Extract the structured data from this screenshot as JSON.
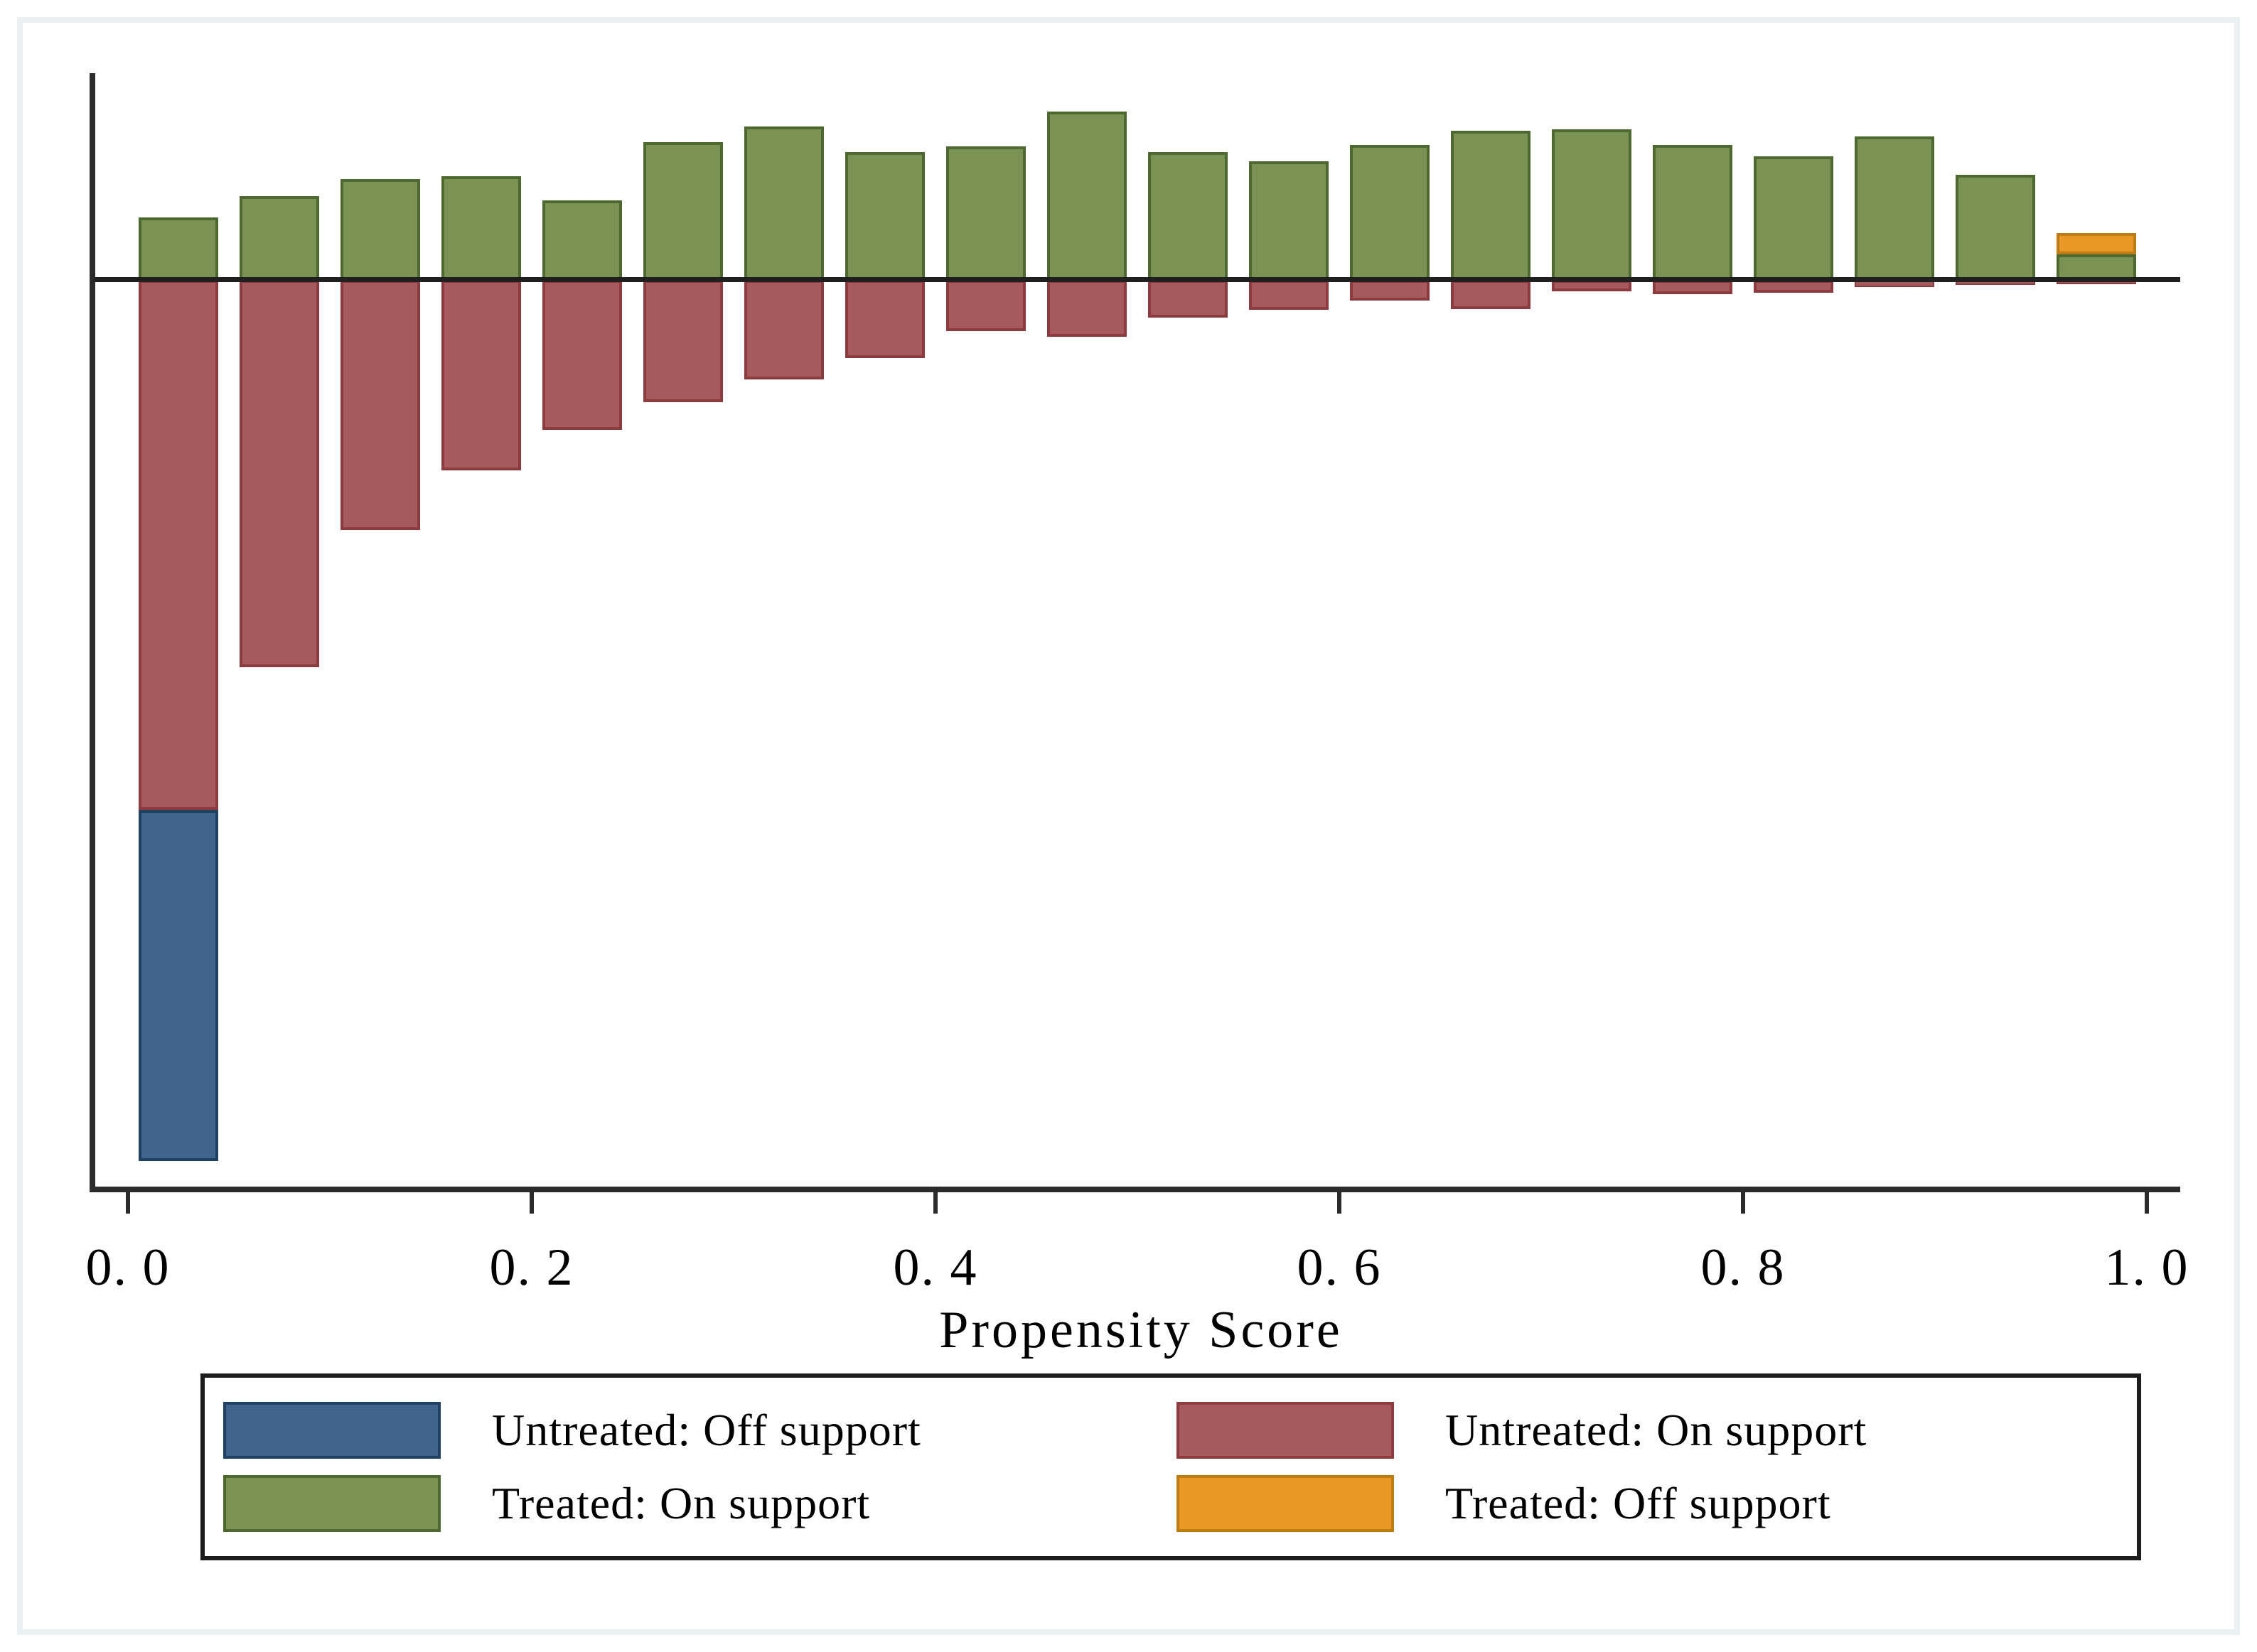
{
  "page": {
    "background": "#ffffff",
    "frame_border_color": "#ebf1f3"
  },
  "axis": {
    "line_color": "#2b2b2b",
    "zero_line_color": "#1f1f1f",
    "text_color": "#000000"
  },
  "chart_data": {
    "type": "bar",
    "title": "",
    "xlabel": "Propensity Score",
    "ylabel": "",
    "x_tick_labels": [
      "0. 0",
      "0. 2",
      "0. 4",
      "0. 6",
      "0. 8",
      "1. 0"
    ],
    "x_tick_values": [
      0.0,
      0.2,
      0.4,
      0.6,
      0.8,
      1.0
    ],
    "xlim": [
      0,
      1
    ],
    "grid": false,
    "y_axis_labeled": false,
    "units": "relative frequency (arbitrary units; y axis has no tick labels)",
    "legend_position": "bottom",
    "bin_width": 0.05,
    "bin_centers": [
      0.025,
      0.075,
      0.125,
      0.175,
      0.225,
      0.275,
      0.325,
      0.375,
      0.425,
      0.475,
      0.525,
      0.575,
      0.625,
      0.675,
      0.725,
      0.775,
      0.825,
      0.875,
      0.925,
      0.975
    ],
    "series": [
      {
        "name": "Treated: On support",
        "orientation": "above-baseline",
        "color": "#7a9355",
        "border_color": "#4d6930",
        "values": [
          88,
          118,
          142,
          146,
          112,
          194,
          216,
          180,
          188,
          237,
          180,
          167,
          190,
          210,
          212,
          190,
          174,
          202,
          148,
          36
        ]
      },
      {
        "name": "Treated: Off support",
        "orientation": "above-baseline-stacked",
        "color": "#e99825",
        "border_color": "#bf7c12",
        "values": [
          0,
          0,
          0,
          0,
          0,
          0,
          0,
          0,
          0,
          0,
          0,
          0,
          0,
          0,
          0,
          0,
          0,
          0,
          0,
          30
        ]
      },
      {
        "name": "Untreated: On support",
        "orientation": "below-baseline",
        "color": "#a65a5c",
        "border_color": "#8d3b3e",
        "values": [
          746,
          545,
          352,
          268,
          211,
          172,
          140,
          110,
          72,
          80,
          53,
          42,
          29,
          41,
          16,
          20,
          18,
          10,
          7,
          6
        ]
      },
      {
        "name": "Untreated: Off support",
        "orientation": "below-baseline-stacked",
        "color": "#41648c",
        "border_color": "#1f4164",
        "values": [
          494,
          0,
          0,
          0,
          0,
          0,
          0,
          0,
          0,
          0,
          0,
          0,
          0,
          0,
          0,
          0,
          0,
          0,
          0,
          0
        ]
      }
    ]
  },
  "legend": {
    "entries": [
      {
        "label": "Untreated: Off support",
        "swatch_color": "#41648c",
        "swatch_border": "#1f4164"
      },
      {
        "label": "Untreated: On support",
        "swatch_color": "#a65a5c",
        "swatch_border": "#8d3b3e"
      },
      {
        "label": "Treated: On support",
        "swatch_color": "#7a9355",
        "swatch_border": "#4d6930"
      },
      {
        "label": "Treated: Off support",
        "swatch_color": "#e99825",
        "swatch_border": "#bf7c12"
      }
    ]
  }
}
